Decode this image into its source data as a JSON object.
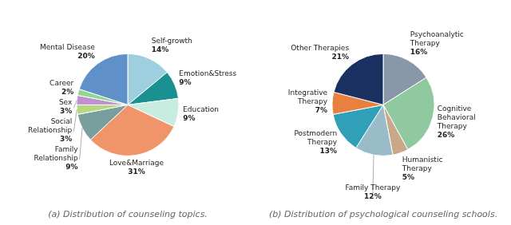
{
  "chart_data": [
    {
      "type": "pie",
      "title": "(a) Distribution of counseling topics.",
      "categories": [
        "Self-growth",
        "Emotion&Stress",
        "Education",
        "Love&Marriage",
        "Family\nRelationship",
        "Social\nRelationship",
        "Sex",
        "Career",
        "Mental Disease"
      ],
      "values": [
        14,
        9,
        9,
        31,
        9,
        3,
        3,
        2,
        20
      ],
      "value_labels": [
        "14%",
        "9%",
        "9%",
        "31%",
        "9%",
        "3%",
        "3%",
        "2%",
        "20%"
      ],
      "colors": [
        "#9dcfdf",
        "#1a9090",
        "#c8ede0",
        "#f0956a",
        "#7a9e9e",
        "#b8d880",
        "#c090d0",
        "#90d890",
        "#6090c8"
      ],
      "data_labels": true
    },
    {
      "type": "pie",
      "title": "(b) Distribution of psychological counseling schools.",
      "categories": [
        "Psychoanalytic\nTherapy",
        "Cognitive\nBehavioral\nTherapy",
        "Humanistic\nTherapy",
        "Family Therapy",
        "Postmodern\nTherapy",
        "Integrative\nTherapy",
        "Other Therapies"
      ],
      "values": [
        16,
        26,
        5,
        12,
        13,
        7,
        21
      ],
      "value_labels": [
        "16%",
        "26%",
        "5%",
        "12%",
        "13%",
        "7%",
        "21%"
      ],
      "colors": [
        "#8898a8",
        "#90c8a0",
        "#c8a888",
        "#9abcc8",
        "#30a0b8",
        "#e88040",
        "#1a3060"
      ],
      "data_labels": true
    }
  ]
}
